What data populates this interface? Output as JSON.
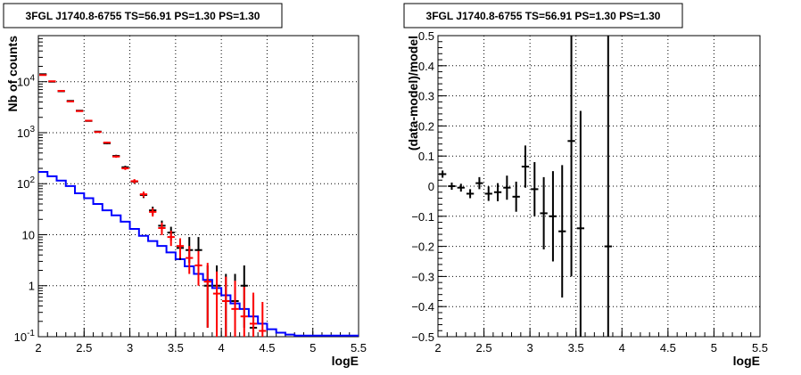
{
  "chart_data": [
    {
      "type": "line",
      "title": "3FGL J1740.8-6755 TS=56.91 PS=1.30 PS=1.30",
      "xlabel": "logE",
      "ylabel": "Nb of counts",
      "xlim": [
        2,
        5.5
      ],
      "ylim": [
        0.1,
        80000
      ],
      "yscale": "log",
      "grid": true,
      "xticks": [
        "2",
        "2.5",
        "3",
        "3.5",
        "4",
        "4.5",
        "5",
        "5.5"
      ],
      "yticks": [
        {
          "value": 0.1,
          "label": "10^-1"
        },
        {
          "value": 1,
          "label": "1"
        },
        {
          "value": 10,
          "label": "10"
        },
        {
          "value": 100,
          "label": "10^2"
        },
        {
          "value": 1000,
          "label": "10^3"
        },
        {
          "value": 10000,
          "label": "10^4"
        }
      ],
      "bin_width": 0.1,
      "series": [
        {
          "color": "#0000ff",
          "style": "step",
          "bin_left": [
            2.0,
            2.1,
            2.2,
            2.3,
            2.4,
            2.5,
            2.6,
            2.7,
            2.8,
            2.9,
            3.0,
            3.1,
            3.2,
            3.3,
            3.4,
            3.5,
            3.6,
            3.7,
            3.8,
            3.9,
            4.0,
            4.1,
            4.2,
            4.3,
            4.4,
            4.5,
            4.6,
            4.7,
            4.8,
            4.9,
            5.0,
            5.1,
            5.2,
            5.3,
            5.4
          ],
          "values": [
            170,
            140,
            115,
            90,
            65,
            52,
            40,
            30,
            24,
            18,
            13,
            9.5,
            7.5,
            6,
            4.5,
            3.3,
            2.4,
            1.7,
            1.3,
            0.9,
            0.65,
            0.45,
            0.35,
            0.25,
            0.18,
            0.14,
            0.12,
            0.11,
            0.105,
            0.105,
            0.105,
            0.105,
            0.105,
            0.105,
            0.105
          ]
        },
        {
          "color": "#000000",
          "style": "points",
          "x": [
            2.05,
            2.15,
            2.25,
            2.35,
            2.45,
            2.55,
            2.65,
            2.75,
            2.85,
            2.95,
            3.05,
            3.15,
            3.25,
            3.35,
            3.45,
            3.55,
            3.65,
            3.75,
            3.85,
            3.95,
            4.05,
            4.15,
            4.25,
            4.35
          ],
          "y": [
            14000,
            10000,
            6500,
            4200,
            2700,
            1700,
            1050,
            620,
            350,
            210,
            110,
            60,
            30,
            15,
            11,
            5.5,
            5,
            5,
            1,
            1,
            0.5,
            0.5,
            1,
            0.15
          ],
          "err_low": [
            120,
            100,
            80,
            65,
            52,
            41,
            32,
            25,
            19,
            14.5,
            10.5,
            7.7,
            5.5,
            3.9,
            3.3,
            2.3,
            2.2,
            2.2,
            0.85,
            0.85,
            0.45,
            0.45,
            0.85,
            0.05
          ],
          "err_high": [
            120,
            100,
            80,
            65,
            52,
            41,
            32,
            25,
            19,
            14.5,
            10.5,
            7.7,
            5.5,
            3.9,
            3.3,
            2.3,
            4,
            4,
            1.5,
            1.5,
            1.2,
            1.2,
            1.5,
            0.5
          ]
        },
        {
          "color": "#ff0000",
          "style": "points",
          "x": [
            2.05,
            2.15,
            2.25,
            2.35,
            2.45,
            2.55,
            2.65,
            2.75,
            2.85,
            2.95,
            3.05,
            3.15,
            3.25,
            3.35,
            3.45,
            3.55,
            3.65,
            3.75,
            3.85,
            3.95,
            4.05,
            4.15,
            4.25,
            4.35,
            4.45
          ],
          "y": [
            13500,
            10200,
            6600,
            4100,
            2650,
            1720,
            1030,
            640,
            340,
            200,
            112,
            62,
            28,
            13.5,
            9,
            6,
            3.5,
            2.5,
            1.2,
            0.7,
            0.5,
            0.35,
            0.25,
            0.18,
            0.13
          ],
          "err_low": [
            116,
            101,
            81,
            64,
            51,
            41,
            32,
            25,
            18,
            14,
            10.6,
            7.9,
            5.3,
            3.7,
            3,
            2.5,
            1.8,
            1.5,
            1.05,
            0.6,
            0.45,
            0.3,
            0.2,
            0.1,
            0.03
          ],
          "err_high": [
            116,
            101,
            81,
            64,
            51,
            41,
            32,
            25,
            18,
            14,
            10.6,
            7.9,
            5.3,
            3.7,
            3,
            2.5,
            2.5,
            2.3,
            1.6,
            1.2,
            1,
            0.9,
            0.7,
            0.55,
            0.35
          ]
        }
      ]
    },
    {
      "type": "scatter",
      "title": "3FGL J1740.8-6755 TS=56.91 PS=1.30 PS=1.30",
      "xlabel": "logE",
      "ylabel": "(data-model)/model",
      "xlim": [
        2,
        5.5
      ],
      "ylim": [
        -0.5,
        0.5
      ],
      "grid": true,
      "xticks": [
        "2",
        "2.5",
        "3",
        "3.5",
        "4",
        "4.5",
        "5",
        "5.5"
      ],
      "yticks": [
        "-0.5",
        "-0.4",
        "-0.3",
        "-0.2",
        "-0.1",
        "0",
        "0.1",
        "0.2",
        "0.3",
        "0.4",
        "0.5"
      ],
      "series": [
        {
          "color": "#000000",
          "x": [
            2.05,
            2.15,
            2.25,
            2.35,
            2.45,
            2.55,
            2.65,
            2.75,
            2.85,
            2.95,
            3.05,
            3.15,
            3.25,
            3.35,
            3.45,
            3.55,
            3.85
          ],
          "y": [
            0.04,
            0.0,
            -0.005,
            -0.025,
            0.01,
            -0.025,
            -0.02,
            -0.005,
            -0.035,
            0.065,
            -0.01,
            -0.09,
            -0.1,
            -0.15,
            0.15,
            -0.14,
            -0.2
          ],
          "err": [
            0.012,
            0.012,
            0.013,
            0.015,
            0.02,
            0.024,
            0.03,
            0.04,
            0.05,
            0.07,
            0.09,
            0.12,
            0.15,
            0.22,
            0.45,
            0.39,
            1.5
          ]
        }
      ]
    }
  ]
}
